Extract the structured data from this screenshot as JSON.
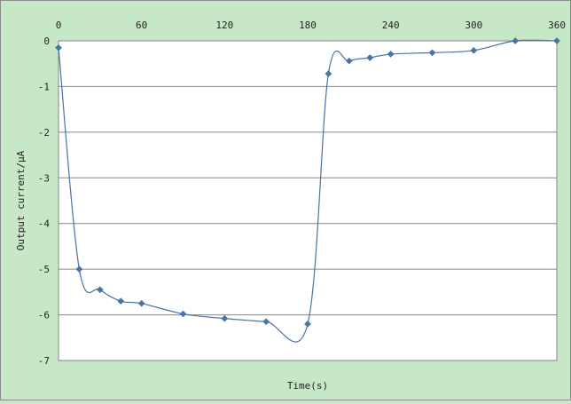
{
  "chart_data": {
    "type": "line",
    "title": "",
    "xlabel": "Time(s)",
    "ylabel": "Output current/μA",
    "xlim": [
      0,
      360
    ],
    "ylim": [
      -7,
      0
    ],
    "x_ticks": [
      0,
      60,
      120,
      180,
      240,
      300,
      360
    ],
    "y_ticks": [
      0,
      -1,
      -2,
      -3,
      -4,
      -5,
      -6,
      -7
    ],
    "x_axis_position": "top",
    "grid": "horizontal",
    "legend": "none",
    "marker": "diamond",
    "smooth": true,
    "colors": {
      "line": "#4a73a6",
      "marker": "#4a73a6",
      "plot_background": "#ffffff",
      "frame_background": "#c7e8c7",
      "gridline": "#868686"
    },
    "series": [
      {
        "x": [
          0,
          15,
          30,
          45,
          60,
          90,
          120,
          150,
          180,
          195,
          210,
          225,
          240,
          270,
          300,
          330,
          360
        ],
        "y": [
          -0.15,
          -5.0,
          -5.45,
          -5.7,
          -5.75,
          -5.98,
          -6.08,
          -6.15,
          -6.2,
          -0.72,
          -0.44,
          -0.37,
          -0.29,
          -0.26,
          -0.21,
          0.0,
          0.0
        ]
      }
    ]
  }
}
